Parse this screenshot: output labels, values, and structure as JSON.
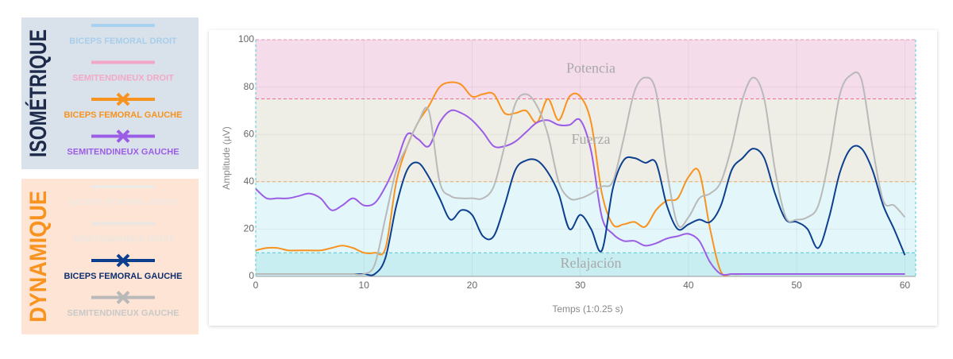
{
  "chart_data": {
    "type": "line",
    "x_label": "Temps (1:0.25 s)",
    "y_label": "Amplitude (µV)",
    "xlim": [
      0,
      61
    ],
    "xticks": [
      0,
      10,
      20,
      30,
      40,
      50,
      60
    ],
    "ylim": [
      0,
      100
    ],
    "yticks": [
      0,
      20,
      40,
      60,
      80,
      100
    ],
    "grid": true,
    "zones": [
      {
        "label": "Relajación",
        "range": [
          0,
          10
        ],
        "color": "#c9eef1",
        "line_color": "#4fc9d3"
      },
      {
        "range": [
          10,
          40
        ],
        "color": "#e3f6fa",
        "line_color": "#f5b36b"
      },
      {
        "label": "Fuerza",
        "range": [
          40,
          75
        ],
        "color": "#eeede6",
        "line_color": "#f06a8f"
      },
      {
        "label": "Potencia",
        "range": [
          75,
          100
        ],
        "color": "#f5dceb",
        "line_color": "#f29ac0"
      }
    ],
    "x": [
      0,
      1,
      2,
      3,
      4,
      5,
      6,
      7,
      8,
      9,
      10,
      11,
      12,
      13,
      14,
      15,
      16,
      17,
      18,
      19,
      20,
      21,
      22,
      23,
      24,
      25,
      26,
      27,
      28,
      29,
      30,
      31,
      32,
      33,
      34,
      35,
      36,
      37,
      38,
      39,
      40,
      41,
      42,
      43,
      44,
      45,
      46,
      47,
      48,
      49,
      50,
      51,
      52,
      53,
      54,
      55,
      56,
      57,
      58,
      59,
      60
    ],
    "groups": [
      {
        "title": "ISOMÉTRIQUE",
        "title_color": "#1d2a4a",
        "background": "#d9e2ea",
        "series": [
          {
            "name": "BICEPS FEMORAL DROIT",
            "color": "#a9d2f0",
            "label_color": "#a9cdea"
          },
          {
            "name": "SEMITENDINEUX DROIT",
            "color": "#f3a7c6",
            "label_color": "#f2a8c6"
          },
          {
            "name": "BICEPS FEMORAL GAUCHE",
            "color": "#f7931e",
            "label_color": "#f7931e",
            "marker": "x",
            "values": [
              11,
              12,
              12,
              11,
              11,
              11,
              11,
              12,
              13,
              12,
              10,
              10,
              12,
              40,
              55,
              65,
              72,
              80,
              82,
              81,
              76,
              77,
              77,
              69,
              69,
              70,
              65,
              75,
              66,
              76,
              76,
              65,
              35,
              22,
              22,
              23,
              21,
              28,
              32,
              33,
              42,
              44,
              20,
              2,
              1,
              1,
              1,
              1,
              1,
              1,
              1,
              1,
              1,
              1,
              1,
              1,
              1,
              1,
              1,
              1,
              1
            ]
          },
          {
            "name": "SEMITENDINEUX GAUCHE",
            "color": "#9b5de5",
            "label_color": "#9b5de5",
            "marker": "x",
            "values": [
              37,
              33,
              33,
              33,
              34,
              35,
              33,
              28,
              30,
              33,
              30,
              31,
              38,
              48,
              60,
              58,
              55,
              65,
              70,
              69,
              66,
              61,
              55,
              55,
              57,
              61,
              65,
              66,
              64,
              64,
              66,
              53,
              25,
              18,
              15,
              15,
              13,
              14,
              16,
              17,
              18,
              15,
              6,
              1,
              1,
              1,
              1,
              1,
              1,
              1,
              1,
              1,
              1,
              1,
              1,
              1,
              1,
              1,
              1,
              1,
              1
            ]
          }
        ]
      },
      {
        "title": "DYNAMIQUE",
        "title_color": "#f7931e",
        "background": "#fde4d4",
        "series": [
          {
            "name": "BICEPS FEMORAL DROIT",
            "color": "#eeeae6",
            "label_color": "#efe8e2"
          },
          {
            "name": "SEMITENDINEUX DROIT",
            "color": "#ebe6e2",
            "label_color": "#ece6e0"
          },
          {
            "name": "BICEPS FEMORAL GAUCHE",
            "color": "#0d3f8f",
            "label_color": "#0d2f6f",
            "marker": "x",
            "values": [
              1,
              1,
              1,
              1,
              1,
              1,
              1,
              1,
              1,
              1,
              1,
              1,
              8,
              30,
              45,
              48,
              42,
              33,
              24,
              28,
              26,
              17,
              17,
              30,
              45,
              49,
              49,
              44,
              35,
              20,
              26,
              20,
              11,
              37,
              49,
              50,
              48,
              48,
              30,
              20,
              22,
              24,
              23,
              30,
              45,
              50,
              54,
              50,
              35,
              24,
              23,
              20,
              12,
              25,
              44,
              54,
              54,
              45,
              30,
              20,
              9
            ]
          },
          {
            "name": "SEMITENDINEUX GAUCHE",
            "color": "#b9b9b9",
            "label_color": "#c9c9c9",
            "marker": "x",
            "values": [
              1,
              1,
              1,
              1,
              1,
              1,
              1,
              1,
              1,
              1,
              1,
              5,
              25,
              45,
              55,
              65,
              70,
              40,
              34,
              33,
              33,
              33,
              38,
              55,
              73,
              77,
              72,
              60,
              40,
              33,
              33,
              35,
              38,
              40,
              58,
              78,
              84,
              78,
              45,
              22,
              25,
              33,
              35,
              40,
              55,
              75,
              84,
              75,
              45,
              25,
              24,
              25,
              30,
              50,
              77,
              85,
              83,
              55,
              32,
              30,
              25
            ]
          }
        ]
      }
    ]
  }
}
